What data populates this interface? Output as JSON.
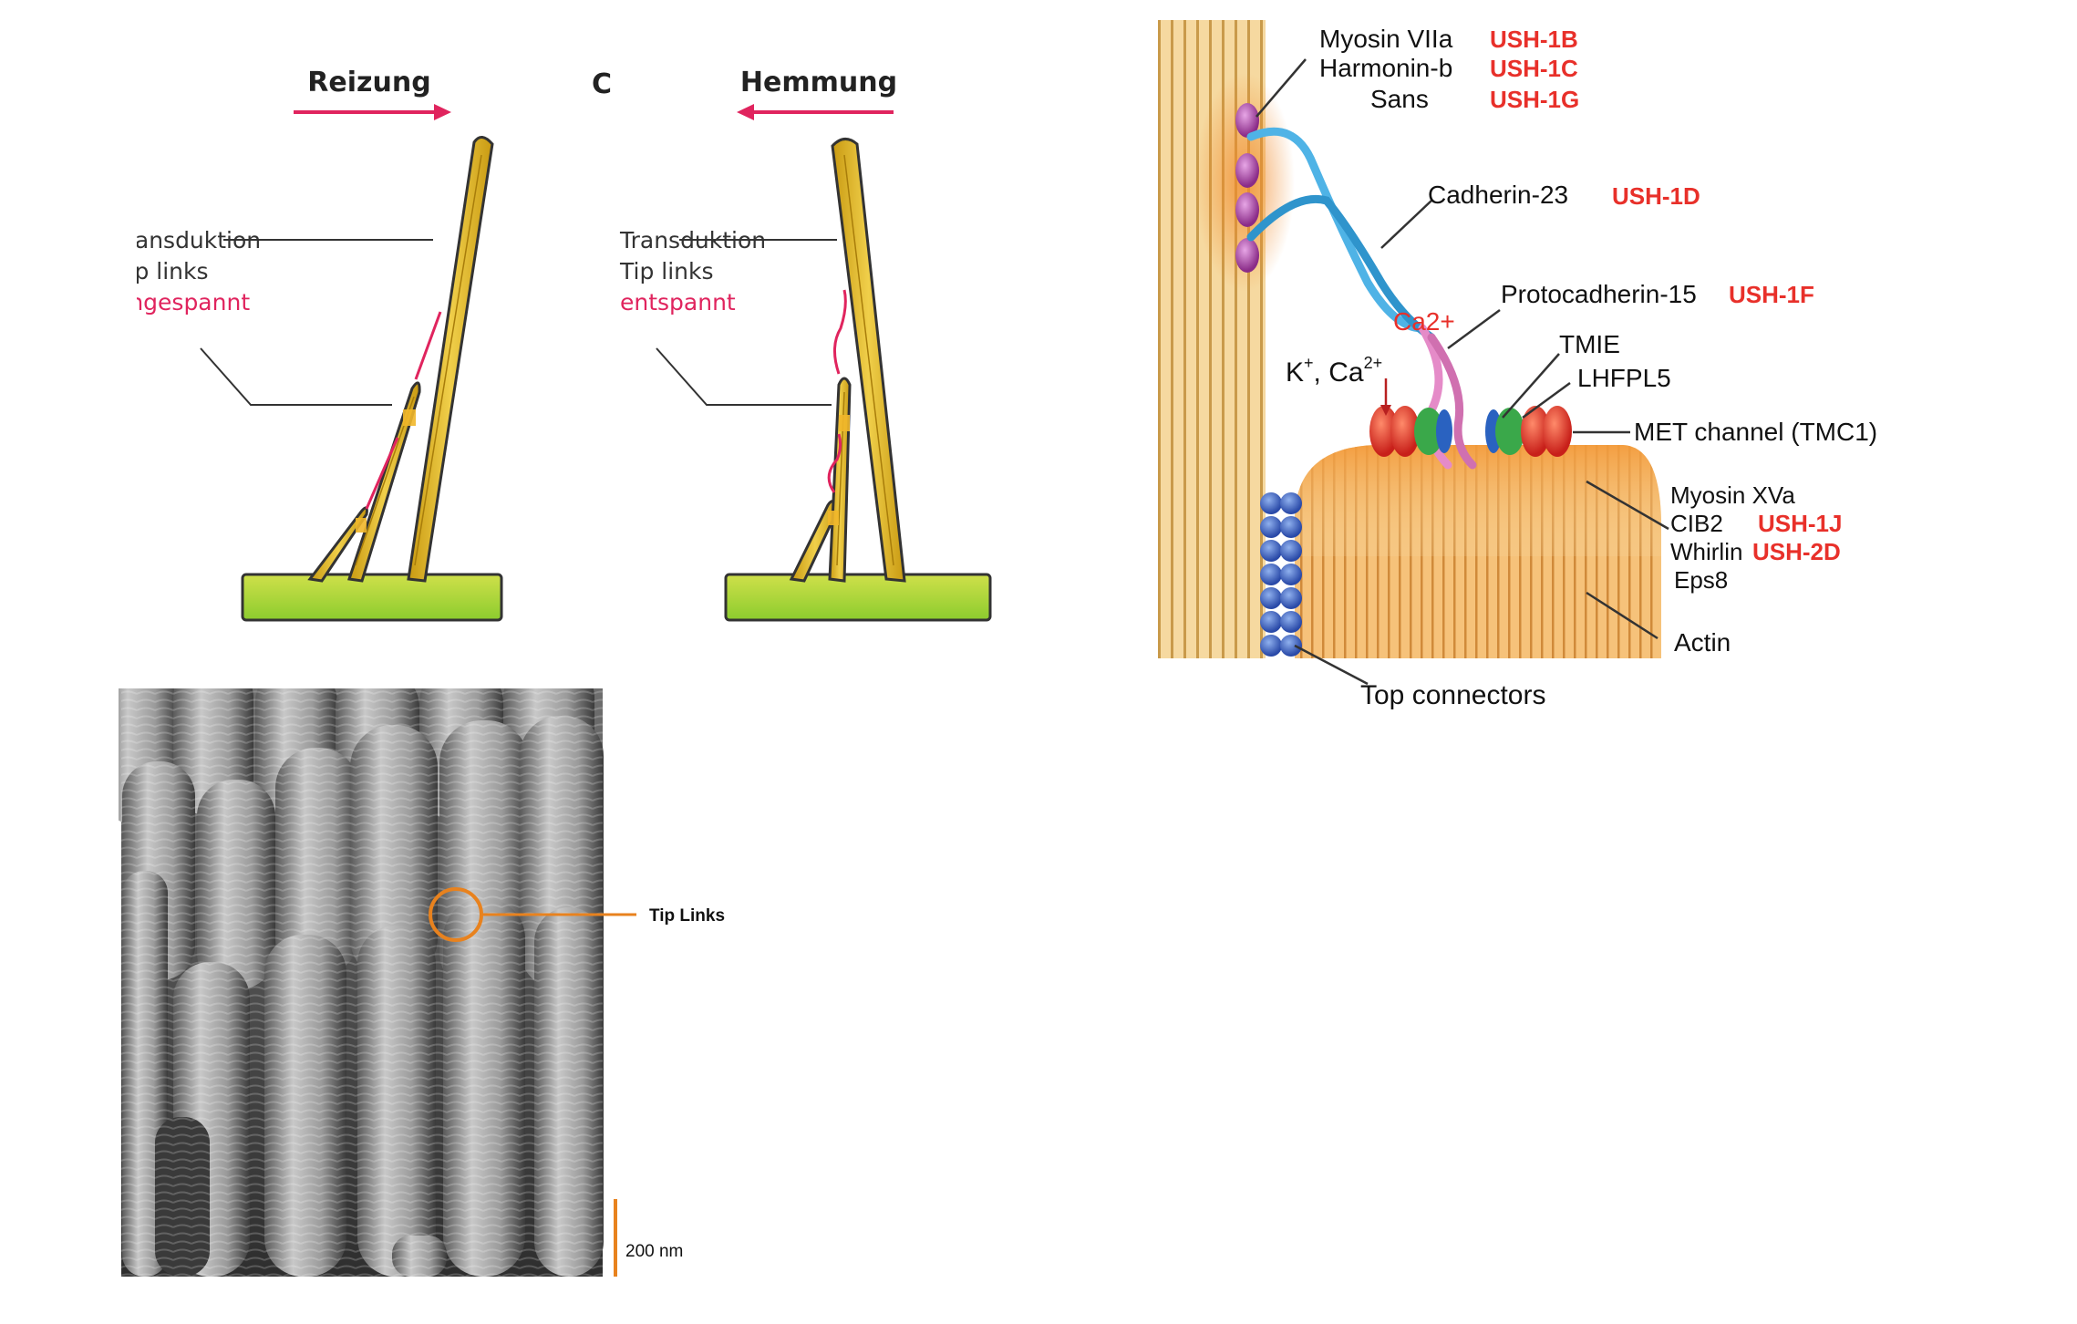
{
  "stimulation_panel": {
    "left_title": "Reizung",
    "right_title": "Hemmung",
    "stray_letter": "C",
    "left_labels": [
      "Transduktion",
      "Tip links",
      "angespannt"
    ],
    "right_labels": [
      "Transduktion",
      "Tip links",
      "entspannt"
    ],
    "colors": {
      "arrow": "#e0245e",
      "stereocilia": "#e8c43a",
      "base_top": "#cfe04a",
      "base_bottom": "#8ccc2e"
    }
  },
  "molecular_panel": {
    "protein_labels": {
      "myosin7a": "Myosin VIIa",
      "harmonin": "Harmonin-b",
      "sans": "Sans",
      "cadherin": "Cadherin-23",
      "protocadherin": "Protocadherin-15",
      "tmie": "TMIE",
      "lhfpl5": "LHFPL5",
      "met": "MET channel (TMC1)",
      "myosin15a": "Myosin XVa",
      "cib2": "CIB2",
      "whirlin": "Whirlin",
      "eps8": "Eps8",
      "actin": "Actin",
      "top_connectors": "Top connectors"
    },
    "gene_labels": {
      "myosin7a": "USH-1B",
      "harmonin": "USH-1C",
      "sans": "USH-1G",
      "cadherin": "USH-1D",
      "protocadherin": "USH-1F",
      "cib2": "USH-1J",
      "whirlin": "USH-2D"
    },
    "ion_label": {
      "k": "K",
      "k_sup": "+",
      "ca": ", Ca",
      "ca_sup": "2+"
    },
    "ca_label": "Ca2+",
    "colors": {
      "gene_red": "#e8302a",
      "cadherin": "#4fb3e6",
      "protocadherin": "#e58bc8",
      "channel_red": "#e03a2a",
      "tmie_green": "#3aa84a",
      "connector_blue": "#3a62c0",
      "myosin_purple": "#a0449e"
    }
  },
  "sem_panel": {
    "annotation": "Tip Links",
    "scale_bar": "200 nm",
    "colors": {
      "annotation": "#e8821e"
    }
  }
}
